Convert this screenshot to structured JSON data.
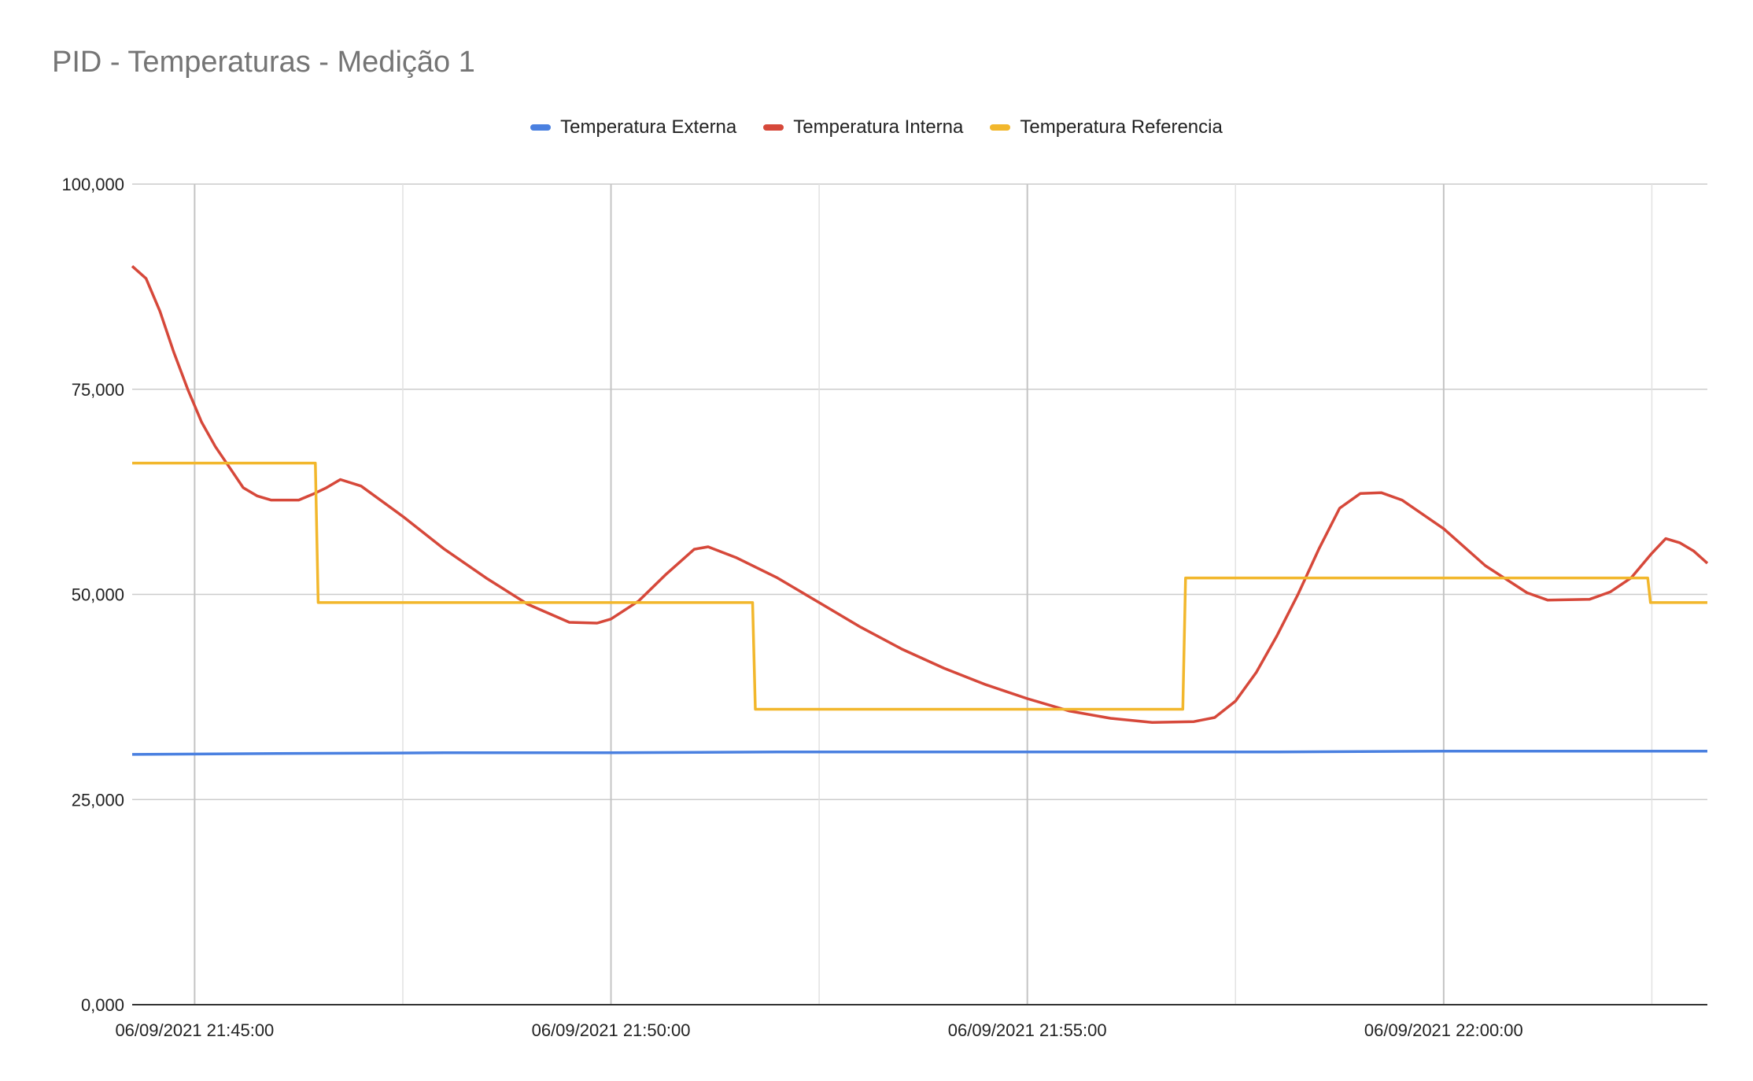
{
  "chart_data": {
    "type": "line",
    "title": "PID - Temperaturas - Medição 1",
    "xlabel": "",
    "ylabel": "",
    "x_range": [
      "06/09/2021 21:44:15",
      "06/09/2021 22:03:10"
    ],
    "ylim": [
      0,
      100
    ],
    "y_ticks": [
      0,
      25,
      50,
      75,
      100
    ],
    "y_tick_labels": [
      "0,000",
      "25,000",
      "50,000",
      "75,000",
      "100,000"
    ],
    "x_ticks": [
      "06/09/2021 21:45:00",
      "06/09/2021 21:50:00",
      "06/09/2021 21:55:00",
      "06/09/2021 22:00:00"
    ],
    "grid": true,
    "legend_position": "top",
    "series": [
      {
        "name": "Temperatura Externa",
        "color": "#4a80e0",
        "points": [
          [
            "06/09/2021 21:44:15",
            30.5
          ],
          [
            "06/09/2021 21:46:00",
            30.6
          ],
          [
            "06/09/2021 21:48:00",
            30.7
          ],
          [
            "06/09/2021 21:50:00",
            30.7
          ],
          [
            "06/09/2021 21:52:00",
            30.8
          ],
          [
            "06/09/2021 21:54:00",
            30.8
          ],
          [
            "06/09/2021 21:56:00",
            30.8
          ],
          [
            "06/09/2021 21:58:00",
            30.8
          ],
          [
            "06/09/2021 22:00:00",
            30.9
          ],
          [
            "06/09/2021 22:02:00",
            30.9
          ],
          [
            "06/09/2021 22:03:10",
            30.9
          ]
        ]
      },
      {
        "name": "Temperatura Interna",
        "color": "#d6483a",
        "points": [
          [
            "06/09/2021 21:44:15",
            90.0
          ],
          [
            "06/09/2021 21:44:25",
            88.5
          ],
          [
            "06/09/2021 21:44:35",
            84.5
          ],
          [
            "06/09/2021 21:44:45",
            79.5
          ],
          [
            "06/09/2021 21:44:55",
            75.0
          ],
          [
            "06/09/2021 21:45:05",
            71.0
          ],
          [
            "06/09/2021 21:45:15",
            68.0
          ],
          [
            "06/09/2021 21:45:25",
            65.5
          ],
          [
            "06/09/2021 21:45:35",
            63.0
          ],
          [
            "06/09/2021 21:45:45",
            62.0
          ],
          [
            "06/09/2021 21:45:55",
            61.5
          ],
          [
            "06/09/2021 21:46:15",
            61.5
          ],
          [
            "06/09/2021 21:46:25",
            62.2
          ],
          [
            "06/09/2021 21:46:35",
            63.0
          ],
          [
            "06/09/2021 21:46:45",
            64.0
          ],
          [
            "06/09/2021 21:47:00",
            63.2
          ],
          [
            "06/09/2021 21:47:30",
            59.5
          ],
          [
            "06/09/2021 21:48:00",
            55.5
          ],
          [
            "06/09/2021 21:48:30",
            52.0
          ],
          [
            "06/09/2021 21:49:00",
            48.8
          ],
          [
            "06/09/2021 21:49:30",
            46.6
          ],
          [
            "06/09/2021 21:49:50",
            46.5
          ],
          [
            "06/09/2021 21:50:00",
            47.0
          ],
          [
            "06/09/2021 21:50:20",
            49.2
          ],
          [
            "06/09/2021 21:50:40",
            52.5
          ],
          [
            "06/09/2021 21:51:00",
            55.5
          ],
          [
            "06/09/2021 21:51:10",
            55.8
          ],
          [
            "06/09/2021 21:51:30",
            54.5
          ],
          [
            "06/09/2021 21:52:00",
            52.0
          ],
          [
            "06/09/2021 21:52:30",
            49.0
          ],
          [
            "06/09/2021 21:53:00",
            46.0
          ],
          [
            "06/09/2021 21:53:30",
            43.3
          ],
          [
            "06/09/2021 21:54:00",
            41.0
          ],
          [
            "06/09/2021 21:54:30",
            39.0
          ],
          [
            "06/09/2021 21:55:00",
            37.3
          ],
          [
            "06/09/2021 21:55:30",
            35.8
          ],
          [
            "06/09/2021 21:56:00",
            34.9
          ],
          [
            "06/09/2021 21:56:30",
            34.4
          ],
          [
            "06/09/2021 21:57:00",
            34.5
          ],
          [
            "06/09/2021 21:57:15",
            35.0
          ],
          [
            "06/09/2021 21:57:30",
            37.0
          ],
          [
            "06/09/2021 21:57:45",
            40.5
          ],
          [
            "06/09/2021 21:58:00",
            45.0
          ],
          [
            "06/09/2021 21:58:15",
            50.0
          ],
          [
            "06/09/2021 21:58:30",
            55.5
          ],
          [
            "06/09/2021 21:58:45",
            60.5
          ],
          [
            "06/09/2021 21:59:00",
            62.3
          ],
          [
            "06/09/2021 21:59:15",
            62.4
          ],
          [
            "06/09/2021 21:59:30",
            61.5
          ],
          [
            "06/09/2021 22:00:00",
            58.0
          ],
          [
            "06/09/2021 22:00:30",
            53.5
          ],
          [
            "06/09/2021 22:01:00",
            50.2
          ],
          [
            "06/09/2021 22:01:15",
            49.3
          ],
          [
            "06/09/2021 22:01:45",
            49.4
          ],
          [
            "06/09/2021 22:02:00",
            50.3
          ],
          [
            "06/09/2021 22:02:15",
            52.0
          ],
          [
            "06/09/2021 22:02:30",
            55.0
          ],
          [
            "06/09/2021 22:02:40",
            56.8
          ],
          [
            "06/09/2021 22:02:50",
            56.3
          ],
          [
            "06/09/2021 22:03:00",
            55.3
          ],
          [
            "06/09/2021 22:03:10",
            53.8
          ]
        ]
      },
      {
        "name": "Temperatura Referencia",
        "color": "#f2b72c",
        "points": [
          [
            "06/09/2021 21:44:15",
            66.0
          ],
          [
            "06/09/2021 21:46:27",
            66.0
          ],
          [
            "06/09/2021 21:46:29",
            49.0
          ],
          [
            "06/09/2021 21:51:42",
            49.0
          ],
          [
            "06/09/2021 21:51:44",
            36.0
          ],
          [
            "06/09/2021 21:56:52",
            36.0
          ],
          [
            "06/09/2021 21:56:54",
            52.0
          ],
          [
            "06/09/2021 22:02:27",
            52.0
          ],
          [
            "06/09/2021 22:02:29",
            49.0
          ],
          [
            "06/09/2021 22:03:10",
            49.0
          ]
        ]
      }
    ]
  }
}
